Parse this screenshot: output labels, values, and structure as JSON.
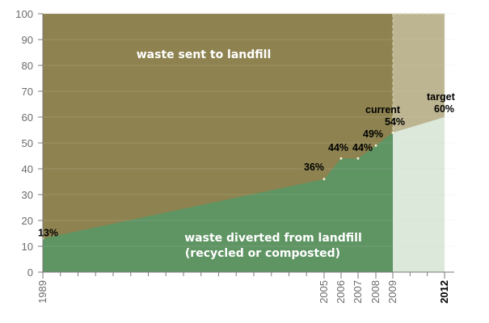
{
  "chart_data": {
    "type": "area",
    "title": "",
    "xlabel": "",
    "ylabel": "",
    "ylim": [
      0,
      100
    ],
    "yticks": [
      0,
      10,
      20,
      30,
      40,
      50,
      60,
      70,
      80,
      90,
      100
    ],
    "xlim": [
      1989,
      2012
    ],
    "xticks": [
      1989,
      2005,
      2006,
      2007,
      2008,
      2009,
      2012
    ],
    "xticks_bold": [
      2012
    ],
    "grid": "horizontal",
    "colors": {
      "landfill": "#8e8350",
      "diverted": "#5f9463",
      "landfill_projected": "#bdb591",
      "diverted_projected": "#dbe8da",
      "grid": "#cfcfcf"
    },
    "series": [
      {
        "values": [
          {
            "x": 1989,
            "y": 13
          },
          {
            "x": 2005,
            "y": 36
          },
          {
            "x": 2006,
            "y": 44
          },
          {
            "x": 2007,
            "y": 44
          },
          {
            "x": 2008,
            "y": 49
          },
          {
            "x": 2009,
            "y": 54
          }
        ]
      }
    ],
    "projection": [
      {
        "x": 2009,
        "y": 54
      },
      {
        "x": 2012,
        "y": 60
      }
    ],
    "area_labels": {
      "landfill": "waste sent to landfill",
      "diverted_line1": "waste diverted from landfill",
      "diverted_line2": "(recycled or composted)"
    },
    "annotations": [
      {
        "x": 1989,
        "y": 13,
        "text": "13%"
      },
      {
        "x": 2005,
        "y": 36,
        "text": "36%"
      },
      {
        "x": 2006,
        "y": 44,
        "text": "44%"
      },
      {
        "x": 2007,
        "y": 44,
        "text": "44%"
      },
      {
        "x": 2008,
        "y": 49,
        "text": "49%"
      },
      {
        "x": 2009,
        "y": 54,
        "text": "current",
        "text2": "54%"
      },
      {
        "x": 2012,
        "y": 60,
        "text": "target",
        "text2": "60%"
      }
    ]
  }
}
